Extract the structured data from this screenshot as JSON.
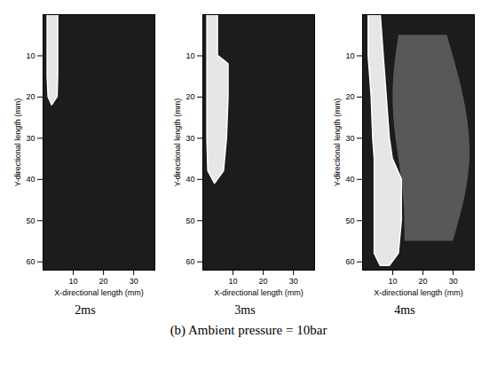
{
  "chart_data": [
    {
      "type": "area",
      "title": "2ms",
      "x_label": "X-directional length (mm)",
      "y_label": "Y-directional length (mm)",
      "xlim": [
        0,
        37
      ],
      "xticks": [
        10,
        20,
        30
      ],
      "ylim": [
        62,
        0
      ],
      "yticks": [
        10,
        20,
        30,
        40,
        50,
        60
      ],
      "spray": {
        "y": [
          0,
          5,
          10,
          15,
          20,
          22
        ],
        "x_left": [
          1.5,
          1.5,
          1.5,
          1.5,
          1.8,
          3
        ],
        "x_right": [
          5,
          5,
          5,
          5,
          4.8,
          3
        ]
      }
    },
    {
      "type": "area",
      "title": "3ms",
      "x_label": "X-directional length (mm)",
      "y_label": "Y-directional length (mm)",
      "xlim": [
        0,
        37
      ],
      "xticks": [
        10,
        20,
        30
      ],
      "ylim": [
        62,
        0
      ],
      "yticks": [
        10,
        20,
        30,
        40,
        50,
        60
      ],
      "spray": {
        "y": [
          0,
          10,
          12,
          20,
          30,
          38,
          41
        ],
        "x_left": [
          1.5,
          1.5,
          1.5,
          1.5,
          1.5,
          1.8,
          4
        ],
        "x_right": [
          5,
          5,
          8.5,
          8.5,
          8,
          7,
          4
        ]
      }
    },
    {
      "type": "area",
      "title": "4ms",
      "x_label": "X-directional length (mm)",
      "y_label": "Y-directional length (mm)",
      "xlim": [
        0,
        37
      ],
      "xticks": [
        10,
        20,
        30
      ],
      "ylim": [
        62,
        0
      ],
      "yticks": [
        10,
        20,
        30,
        40,
        50,
        60
      ],
      "spray": {
        "y": [
          0,
          10,
          20,
          30,
          35,
          40,
          50,
          58,
          61
        ],
        "x_left": [
          2,
          2,
          3,
          3.5,
          4,
          4,
          4,
          4,
          6
        ],
        "x_right": [
          6,
          7,
          8,
          9,
          10,
          13,
          13,
          12,
          9
        ]
      },
      "cloud": {
        "y": [
          5,
          15,
          25,
          35,
          45,
          55
        ],
        "x_left": [
          12,
          10,
          10,
          12,
          14,
          14
        ],
        "x_right": [
          28,
          32,
          35,
          36,
          34,
          30
        ]
      }
    }
  ],
  "caption": "(b) Ambient pressure = 10bar"
}
